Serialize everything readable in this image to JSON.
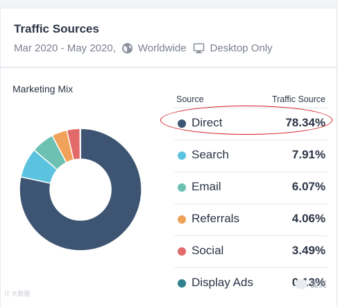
{
  "card": {
    "title": "Traffic Sources",
    "date_range": "Mar 2020 - May 2020,",
    "region": "Worldwide",
    "device": "Desktop Only"
  },
  "marketing_mix": {
    "title": "Marketing Mix",
    "columns": {
      "source": "Source",
      "share": "Traffic Source"
    },
    "rows": [
      {
        "label": "Direct",
        "value": "78.34%",
        "color": "#3d5572"
      },
      {
        "label": "Search",
        "value": "7.91%",
        "color": "#5bc3df"
      },
      {
        "label": "Email",
        "value": "6.07%",
        "color": "#6cc1b3"
      },
      {
        "label": "Referrals",
        "value": "4.06%",
        "color": "#f0a25a"
      },
      {
        "label": "Social",
        "value": "3.49%",
        "color": "#e26a6a"
      },
      {
        "label": "Display Ads",
        "value": "0.13%",
        "color": "#2f7f8e"
      }
    ],
    "highlighted_row": "Direct"
  },
  "chart_data": {
    "type": "pie",
    "title": "Marketing Mix",
    "categories": [
      "Direct",
      "Search",
      "Email",
      "Referrals",
      "Social",
      "Display Ads"
    ],
    "values": [
      78.34,
      7.91,
      6.07,
      4.06,
      3.49,
      0.13
    ],
    "colors": [
      "#3d5572",
      "#5bc3df",
      "#6cc1b3",
      "#f0a25a",
      "#e26a6a",
      "#2f7f8e"
    ]
  },
  "watermarks": {
    "left": "IT 大数据",
    "right": "愛亮"
  }
}
